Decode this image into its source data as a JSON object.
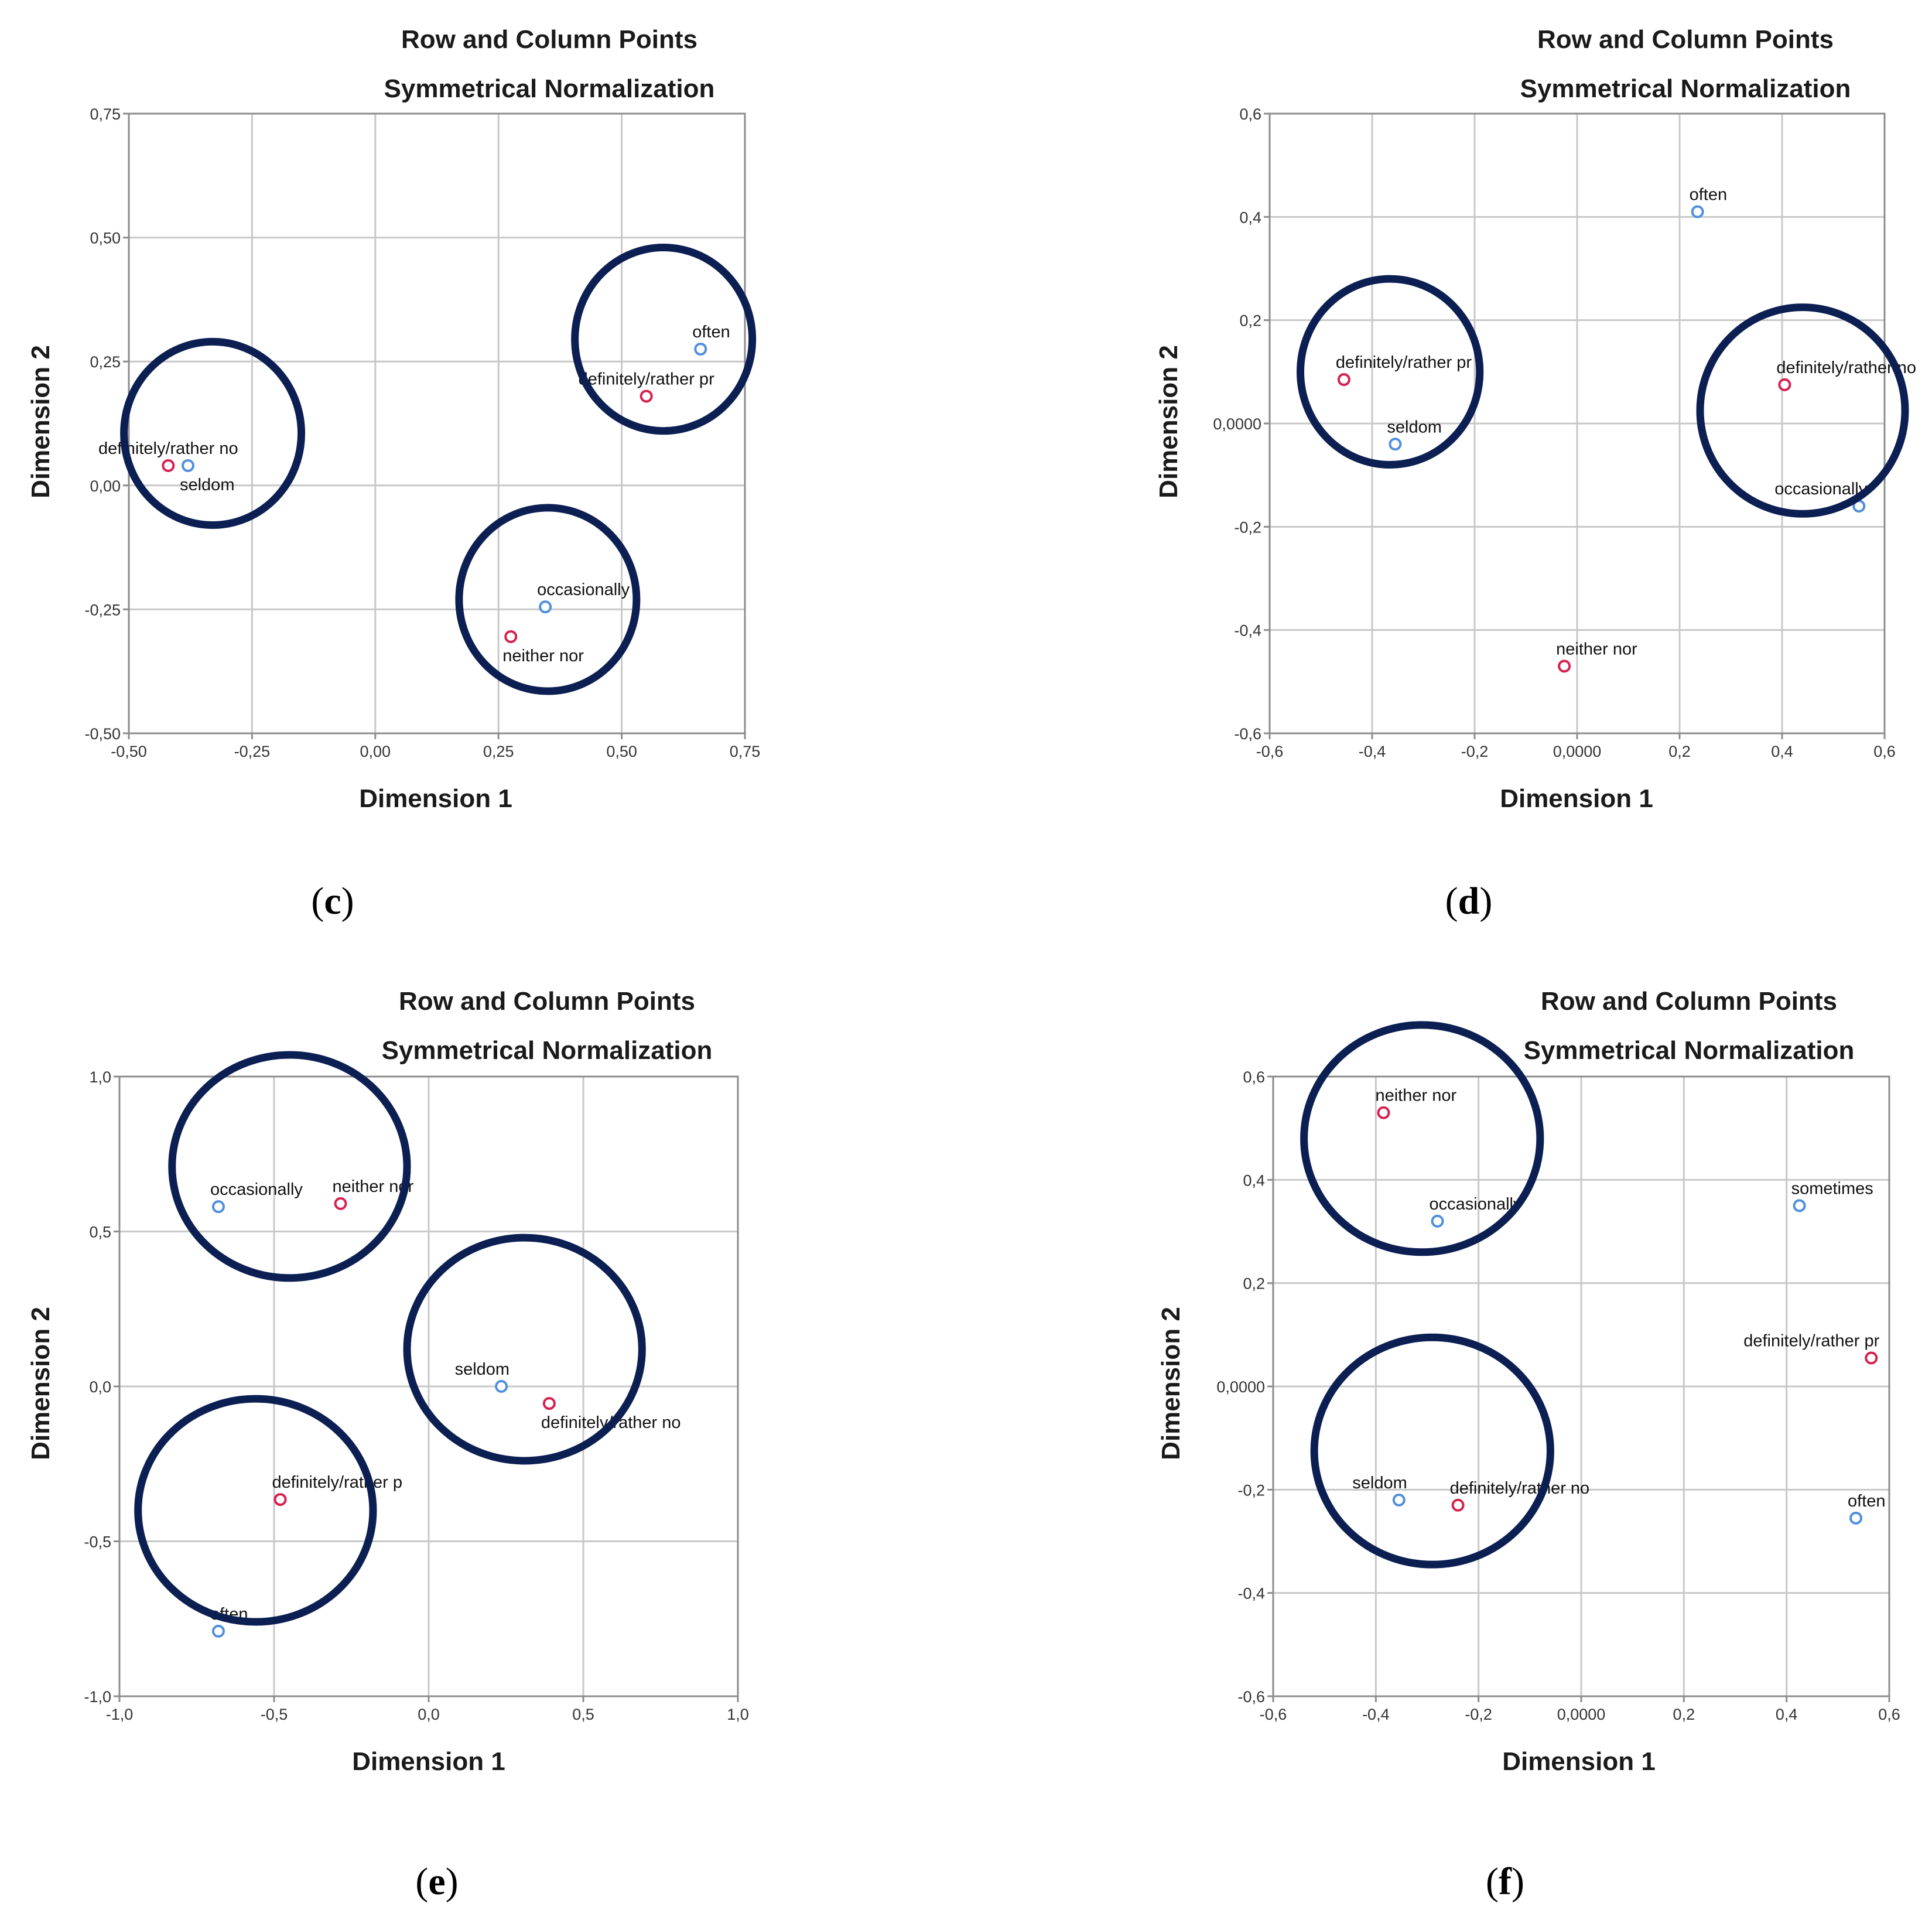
{
  "colors": {
    "row_point": "#d6204f",
    "column_point": "#4f8fdc",
    "circle": "#0c1f52",
    "grid": "#c8c8c8",
    "frame": "#8c8c8c"
  },
  "chart_data": [
    {
      "panel": "c",
      "type": "scatter",
      "title": "Row and Column Points",
      "subtitle": "Symmetrical Normalization",
      "xlabel": "Dimension 1",
      "ylabel": "Dimension 2",
      "xlim": [
        -0.5,
        0.75
      ],
      "ylim": [
        -0.5,
        0.75
      ],
      "xticks": [
        -0.5,
        -0.25,
        0.0,
        0.25,
        0.5,
        0.75
      ],
      "yticks": [
        -0.5,
        -0.25,
        0.0,
        0.25,
        0.5,
        0.75
      ],
      "xtick_labels": [
        "-0,50",
        "-0,25",
        "0,00",
        "0,25",
        "0,50",
        "0,75"
      ],
      "ytick_labels": [
        "-0,50",
        "-0,25",
        "0,00",
        "0,25",
        "0,50",
        "0,75"
      ],
      "grid": true,
      "points": [
        {
          "label": "definitely/rather no",
          "x": -0.42,
          "y": 0.04,
          "kind": "row",
          "label_pos": "above"
        },
        {
          "label": "seldom",
          "x": -0.38,
          "y": 0.04,
          "kind": "column",
          "label_pos": "below-right"
        },
        {
          "label": "often",
          "x": 0.66,
          "y": 0.275,
          "kind": "column",
          "label_pos": "above-right"
        },
        {
          "label": "definitely/rather pr",
          "x": 0.55,
          "y": 0.18,
          "kind": "row",
          "label_pos": "above"
        },
        {
          "label": "occasionally",
          "x": 0.345,
          "y": -0.245,
          "kind": "column",
          "label_pos": "above-right"
        },
        {
          "label": "neither nor",
          "x": 0.275,
          "y": -0.305,
          "kind": "row",
          "label_pos": "below-right"
        }
      ],
      "clusters": [
        {
          "cx": -0.33,
          "cy": 0.105,
          "rx": 0.18,
          "ry": 0.185
        },
        {
          "cx": 0.585,
          "cy": 0.295,
          "rx": 0.18,
          "ry": 0.185
        },
        {
          "cx": 0.35,
          "cy": -0.23,
          "rx": 0.18,
          "ry": 0.185
        }
      ]
    },
    {
      "panel": "d",
      "type": "scatter",
      "title": "Row and Column Points",
      "subtitle": "Symmetrical Normalization",
      "xlabel": "Dimension 1",
      "ylabel": "Dimension 2",
      "xlim": [
        -0.6,
        0.6
      ],
      "ylim": [
        -0.6,
        0.6
      ],
      "xticks": [
        -0.6,
        -0.4,
        -0.2,
        0.0,
        0.2,
        0.4,
        0.6
      ],
      "yticks": [
        -0.6,
        -0.4,
        -0.2,
        0.0,
        0.2,
        0.4,
        0.6
      ],
      "xtick_labels": [
        "-0,6",
        "-0,4",
        "-0,2",
        "0,0000",
        "0,2",
        "0,4",
        "0,6"
      ],
      "ytick_labels": [
        "-0,6",
        "-0,4",
        "-0,2",
        "0,0000",
        "0,2",
        "0,4",
        "0,6"
      ],
      "grid": true,
      "points": [
        {
          "label": "often",
          "x": 0.235,
          "y": 0.41,
          "kind": "column",
          "label_pos": "above-right"
        },
        {
          "label": "definitely/rather pr",
          "x": -0.455,
          "y": 0.085,
          "kind": "row",
          "label_pos": "above-right"
        },
        {
          "label": "seldom",
          "x": -0.355,
          "y": -0.04,
          "kind": "column",
          "label_pos": "above-right"
        },
        {
          "label": "definitely/rather no",
          "x": 0.405,
          "y": 0.075,
          "kind": "row",
          "label_pos": "above-right"
        },
        {
          "label": "occasionally",
          "x": 0.55,
          "y": -0.16,
          "kind": "column",
          "label_pos": "above-left"
        },
        {
          "label": "neither nor",
          "x": -0.025,
          "y": -0.47,
          "kind": "row",
          "label_pos": "above-right"
        }
      ],
      "clusters": [
        {
          "cx": -0.365,
          "cy": 0.1,
          "rx": 0.175,
          "ry": 0.18
        },
        {
          "cx": 0.44,
          "cy": 0.025,
          "rx": 0.2,
          "ry": 0.2
        }
      ]
    },
    {
      "panel": "e",
      "type": "scatter",
      "title": "Row and Column Points",
      "subtitle": "Symmetrical Normalization",
      "xlabel": "Dimension 1",
      "ylabel": "Dimension 2",
      "xlim": [
        -1.0,
        1.0
      ],
      "ylim": [
        -1.0,
        1.0
      ],
      "xticks": [
        -1.0,
        -0.5,
        0.0,
        0.5,
        1.0
      ],
      "yticks": [
        -1.0,
        -0.5,
        0.0,
        0.5,
        1.0
      ],
      "xtick_labels": [
        "-1,0",
        "-0,5",
        "0,0",
        "0,5",
        "1,0"
      ],
      "ytick_labels": [
        "-1,0",
        "-0,5",
        "0,0",
        "0,5",
        "1,0"
      ],
      "grid": true,
      "points": [
        {
          "label": "occasionally",
          "x": -0.68,
          "y": 0.58,
          "kind": "column",
          "label_pos": "above-right"
        },
        {
          "label": "neither nor",
          "x": -0.285,
          "y": 0.59,
          "kind": "row",
          "label_pos": "above-right"
        },
        {
          "label": "seldom",
          "x": 0.235,
          "y": 0.0,
          "kind": "column",
          "label_pos": "above-left"
        },
        {
          "label": "definitely/rather no",
          "x": 0.39,
          "y": -0.055,
          "kind": "row",
          "label_pos": "below-right"
        },
        {
          "label": "definitely/rather p",
          "x": -0.48,
          "y": -0.365,
          "kind": "row",
          "label_pos": "above-right"
        },
        {
          "label": "often",
          "x": -0.68,
          "y": -0.79,
          "kind": "column",
          "label_pos": "above-right"
        }
      ],
      "clusters": [
        {
          "cx": -0.45,
          "cy": 0.71,
          "rx": 0.38,
          "ry": 0.36
        },
        {
          "cx": 0.31,
          "cy": 0.12,
          "rx": 0.38,
          "ry": 0.36
        },
        {
          "cx": -0.56,
          "cy": -0.4,
          "rx": 0.38,
          "ry": 0.36
        }
      ]
    },
    {
      "panel": "f",
      "type": "scatter",
      "title": "Row and Column Points",
      "subtitle": "Symmetrical Normalization",
      "xlabel": "Dimension 1",
      "ylabel": "Dimension 2",
      "xlim": [
        -0.6,
        0.6
      ],
      "ylim": [
        -0.6,
        0.6
      ],
      "xticks": [
        -0.6,
        -0.4,
        -0.2,
        0.0,
        0.2,
        0.4,
        0.6
      ],
      "yticks": [
        -0.6,
        -0.4,
        -0.2,
        0.0,
        0.2,
        0.4,
        0.6
      ],
      "xtick_labels": [
        "-0,6",
        "-0,4",
        "-0,2",
        "0,0000",
        "0,2",
        "0,4",
        "0,6"
      ],
      "ytick_labels": [
        "-0,6",
        "-0,4",
        "-0,2",
        "0,0000",
        "0,2",
        "0,4",
        "0,6"
      ],
      "grid": true,
      "points": [
        {
          "label": "neither nor",
          "x": -0.385,
          "y": 0.53,
          "kind": "row",
          "label_pos": "above-right"
        },
        {
          "label": "occasionally",
          "x": -0.28,
          "y": 0.32,
          "kind": "column",
          "label_pos": "above-right"
        },
        {
          "label": "sometimes",
          "x": 0.425,
          "y": 0.35,
          "kind": "column",
          "label_pos": "above-right"
        },
        {
          "label": "definitely/rather pr",
          "x": 0.565,
          "y": 0.055,
          "kind": "row",
          "label_pos": "above-left"
        },
        {
          "label": "seldom",
          "x": -0.355,
          "y": -0.22,
          "kind": "column",
          "label_pos": "above-left"
        },
        {
          "label": "definitely/rather no",
          "x": -0.24,
          "y": -0.23,
          "kind": "row",
          "label_pos": "above-right"
        },
        {
          "label": "often",
          "x": 0.535,
          "y": -0.255,
          "kind": "column",
          "label_pos": "above-right"
        }
      ],
      "clusters": [
        {
          "cx": -0.31,
          "cy": 0.48,
          "rx": 0.23,
          "ry": 0.22
        },
        {
          "cx": -0.29,
          "cy": -0.125,
          "rx": 0.23,
          "ry": 0.22
        }
      ]
    }
  ]
}
